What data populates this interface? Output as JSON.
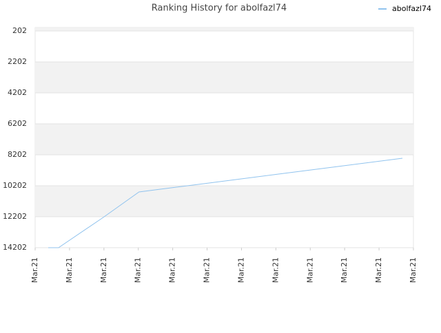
{
  "chart_data": {
    "type": "line",
    "title": "Ranking History for abolfazl74",
    "x": [
      0.38,
      0.68,
      1.98,
      3.02,
      5,
      7,
      9,
      10.68
    ],
    "series": [
      {
        "name": "abolfazl74",
        "color": "#90c3ee",
        "values": [
          14202,
          14202,
          12246,
          10602,
          10039,
          9471,
          8902,
          8424
        ]
      }
    ],
    "xlim": [
      0,
      11
    ],
    "xticks": [
      {
        "value": 0,
        "label": "Mar.21"
      },
      {
        "value": 1,
        "label": "Mar.21"
      },
      {
        "value": 2,
        "label": "Mar.21"
      },
      {
        "value": 3,
        "label": "Mar.21"
      },
      {
        "value": 4,
        "label": "Mar.21"
      },
      {
        "value": 5,
        "label": "Mar.21"
      },
      {
        "value": 6,
        "label": "Mar.21"
      },
      {
        "value": 7,
        "label": "Mar.21"
      },
      {
        "value": 8,
        "label": "Mar.21"
      },
      {
        "value": 9,
        "label": "Mar.21"
      },
      {
        "value": 10,
        "label": "Mar.21"
      },
      {
        "value": 11,
        "label": "Mar.21"
      }
    ],
    "ylim": [
      -20,
      14202
    ],
    "y_inverted": true,
    "yticks": [
      202,
      2202,
      4202,
      6202,
      8202,
      10202,
      12202,
      14202
    ],
    "grid": true,
    "legend": "top-right"
  }
}
